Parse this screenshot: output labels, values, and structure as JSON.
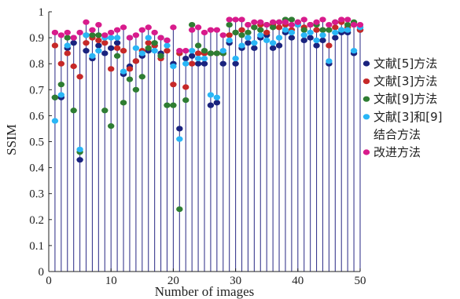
{
  "chart_data": {
    "type": "scatter",
    "xlabel": "Number of images",
    "ylabel": "SSIM",
    "xlim": [
      0,
      50
    ],
    "ylim": [
      0,
      1
    ],
    "xticks": [
      0,
      10,
      20,
      30,
      40,
      50
    ],
    "yticks": [
      0,
      0.1,
      0.2,
      0.3,
      0.4,
      0.5,
      0.6,
      0.7,
      0.8,
      0.9,
      1
    ],
    "ytick_labels": [
      "0",
      "0.1",
      "0.2",
      "0.3",
      "0.4",
      "0.5",
      "0.6",
      "0.7",
      "0.8",
      "0.9",
      "1"
    ],
    "x": [
      1,
      2,
      3,
      4,
      5,
      6,
      7,
      8,
      9,
      10,
      11,
      12,
      13,
      14,
      15,
      16,
      17,
      18,
      19,
      20,
      21,
      22,
      23,
      24,
      25,
      26,
      27,
      28,
      29,
      30,
      31,
      32,
      33,
      34,
      35,
      36,
      37,
      38,
      39,
      40,
      41,
      42,
      43,
      44,
      45,
      46,
      47,
      48,
      49,
      50
    ],
    "grid": false,
    "legend_position": "right",
    "series": [
      {
        "name": "文献[5]方法",
        "color": "#1a237e",
        "values": [
          0.67,
          0.67,
          0.86,
          0.88,
          0.43,
          0.85,
          0.82,
          0.87,
          0.84,
          0.86,
          0.88,
          0.76,
          0.79,
          0.81,
          0.83,
          0.85,
          0.87,
          0.84,
          0.89,
          0.8,
          0.55,
          0.82,
          0.83,
          0.8,
          0.8,
          0.64,
          0.65,
          0.8,
          0.88,
          0.8,
          0.86,
          0.88,
          0.86,
          0.9,
          0.91,
          0.86,
          0.87,
          0.92,
          0.9,
          0.95,
          0.89,
          0.9,
          0.87,
          0.89,
          0.8,
          0.9,
          0.92,
          0.92,
          0.84,
          0.93
        ]
      },
      {
        "name": "文献[3]方法",
        "color": "#c62828",
        "values": [
          0.87,
          0.8,
          0.84,
          0.79,
          0.75,
          0.88,
          0.9,
          0.89,
          0.88,
          0.78,
          0.86,
          0.85,
          0.78,
          0.81,
          0.85,
          0.88,
          0.87,
          0.82,
          0.85,
          0.72,
          0.84,
          0.71,
          0.8,
          0.84,
          0.84,
          0.84,
          0.84,
          0.84,
          0.91,
          0.92,
          0.93,
          0.95,
          0.94,
          0.95,
          0.92,
          0.95,
          0.94,
          0.95,
          0.93,
          0.95,
          0.94,
          0.95,
          0.93,
          0.93,
          0.87,
          0.94,
          0.96,
          0.94,
          0.95,
          0.93
        ]
      },
      {
        "name": "文献[9]方法",
        "color": "#2e7d32",
        "values": [
          0.67,
          0.72,
          0.9,
          0.62,
          0.46,
          0.91,
          0.91,
          0.91,
          0.62,
          0.56,
          0.83,
          0.65,
          0.74,
          0.7,
          0.75,
          0.86,
          0.88,
          0.83,
          0.64,
          0.64,
          0.24,
          0.66,
          0.95,
          0.87,
          0.85,
          0.84,
          0.84,
          0.84,
          0.95,
          0.92,
          0.91,
          0.92,
          0.94,
          0.93,
          0.95,
          0.94,
          0.96,
          0.97,
          0.97,
          0.96,
          0.93,
          0.95,
          0.95,
          0.93,
          0.93,
          0.96,
          0.93,
          0.95,
          0.96,
          0.94
        ]
      },
      {
        "name": "文献[3]和[9]结合方法",
        "color": "#29b6f6",
        "values": [
          0.58,
          0.68,
          0.87,
          0.9,
          0.47,
          0.91,
          0.83,
          0.85,
          0.9,
          0.9,
          0.9,
          0.77,
          0.9,
          0.86,
          0.84,
          0.9,
          0.85,
          0.9,
          0.87,
          0.79,
          0.51,
          0.8,
          0.85,
          0.82,
          0.82,
          0.68,
          0.67,
          0.85,
          0.89,
          0.82,
          0.87,
          0.9,
          0.88,
          0.91,
          0.89,
          0.88,
          0.9,
          0.93,
          0.92,
          0.95,
          0.91,
          0.92,
          0.89,
          0.91,
          0.81,
          0.92,
          0.93,
          0.93,
          0.85,
          0.94
        ]
      },
      {
        "name": "改进方法",
        "color": "#d81b8c",
        "values": [
          0.92,
          0.91,
          0.92,
          0.9,
          0.92,
          0.96,
          0.93,
          0.95,
          0.91,
          0.92,
          0.93,
          0.94,
          0.9,
          0.91,
          0.93,
          0.94,
          0.92,
          0.9,
          0.89,
          0.94,
          0.85,
          0.85,
          0.93,
          0.94,
          0.92,
          0.93,
          0.93,
          0.91,
          0.97,
          0.97,
          0.97,
          0.95,
          0.96,
          0.96,
          0.95,
          0.96,
          0.96,
          0.96,
          0.95,
          0.96,
          0.97,
          0.95,
          0.96,
          0.97,
          0.95,
          0.96,
          0.97,
          0.97,
          0.95,
          0.95
        ]
      }
    ],
    "legend_lines": [
      {
        "text": "文献[5]方法",
        "series": 0
      },
      {
        "text": "文献[3]方法",
        "series": 1
      },
      {
        "text": "文献[9]方法",
        "series": 2
      },
      {
        "text": "文献[3]和[9]",
        "series": 3
      },
      {
        "text": "结合方法",
        "series": -1
      },
      {
        "text": "改进方法",
        "series": 4
      }
    ],
    "stem_color": "#3b3b8f"
  }
}
